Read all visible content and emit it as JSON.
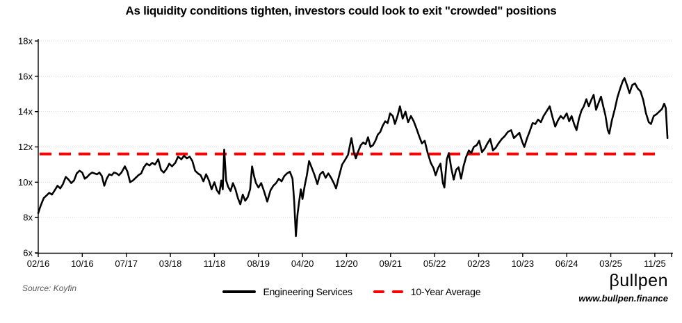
{
  "page": {
    "background": "#ffffff"
  },
  "chart_data": {
    "type": "line",
    "title": "As liquidity conditions tighten, investors could look to exit \"crowded\" positions",
    "xlabel": "",
    "ylabel": "",
    "ylim": [
      6,
      18
    ],
    "grid": "horizontal-dotted",
    "legend_position": "bottom-center",
    "grid_color": "#d9d9d9",
    "axis_color": "#000000",
    "y_ticks": [
      {
        "label": "18x",
        "value": 18
      },
      {
        "label": "16x",
        "value": 16
      },
      {
        "label": "14x",
        "value": 14
      },
      {
        "label": "12x",
        "value": 12
      },
      {
        "label": "10x",
        "value": 10
      },
      {
        "label": "8x",
        "value": 8
      },
      {
        "label": "6x",
        "value": 6
      }
    ],
    "x_ticks": [
      {
        "label": "02/16",
        "month": 0
      },
      {
        "label": "10/16",
        "month": 8
      },
      {
        "label": "07/17",
        "month": 17
      },
      {
        "label": "03/18",
        "month": 25
      },
      {
        "label": "11/18",
        "month": 33
      },
      {
        "label": "08/19",
        "month": 42
      },
      {
        "label": "04/20",
        "month": 50
      },
      {
        "label": "12/20",
        "month": 58
      },
      {
        "label": "09/21",
        "month": 67
      },
      {
        "label": "05/22",
        "month": 75
      },
      {
        "label": "02/23",
        "month": 84
      },
      {
        "label": "10/23",
        "month": 92
      },
      {
        "label": "06/24",
        "month": 100
      },
      {
        "label": "03/25",
        "month": 109
      },
      {
        "label": "11/25",
        "month": 117
      }
    ],
    "series": [
      {
        "name": "Engineering Services",
        "color": "#000000",
        "style": "solid",
        "x_unit": "months_since_2016_02",
        "y_unit": "EV/EBITDA multiple (x)",
        "points": [
          [
            0,
            8.25
          ],
          [
            0.3,
            8.55
          ],
          [
            0.6,
            8.8
          ],
          [
            1,
            9.1
          ],
          [
            1.5,
            9.25
          ],
          [
            2,
            9.4
          ],
          [
            2.5,
            9.3
          ],
          [
            3,
            9.55
          ],
          [
            3.5,
            9.8
          ],
          [
            4,
            9.65
          ],
          [
            4.5,
            9.9
          ],
          [
            5,
            10.3
          ],
          [
            5.5,
            10.15
          ],
          [
            6,
            9.95
          ],
          [
            6.5,
            10.1
          ],
          [
            7,
            10.5
          ],
          [
            7.5,
            10.65
          ],
          [
            8,
            10.55
          ],
          [
            8.5,
            10.2
          ],
          [
            9,
            10.3
          ],
          [
            9.5,
            10.45
          ],
          [
            10,
            10.55
          ],
          [
            10.5,
            10.5
          ],
          [
            11,
            10.45
          ],
          [
            11.5,
            10.55
          ],
          [
            12,
            10.35
          ],
          [
            12.5,
            9.8
          ],
          [
            13,
            10.2
          ],
          [
            13.5,
            10.45
          ],
          [
            14,
            10.4
          ],
          [
            14.5,
            10.55
          ],
          [
            15,
            10.5
          ],
          [
            15.5,
            10.4
          ],
          [
            16,
            10.55
          ],
          [
            16.7,
            10.9
          ],
          [
            17.2,
            10.6
          ],
          [
            17.7,
            10.0
          ],
          [
            18.2,
            10.1
          ],
          [
            18.7,
            10.25
          ],
          [
            19.2,
            10.4
          ],
          [
            19.7,
            10.5
          ],
          [
            20.2,
            10.85
          ],
          [
            20.7,
            11.05
          ],
          [
            21.2,
            10.95
          ],
          [
            21.7,
            11.1
          ],
          [
            22.2,
            11.0
          ],
          [
            22.8,
            11.3
          ],
          [
            23.3,
            10.7
          ],
          [
            23.8,
            10.55
          ],
          [
            24.3,
            10.75
          ],
          [
            24.8,
            11.05
          ],
          [
            25.3,
            10.9
          ],
          [
            25.9,
            11.1
          ],
          [
            26.4,
            11.45
          ],
          [
            27,
            11.3
          ],
          [
            27.5,
            11.5
          ],
          [
            28,
            11.35
          ],
          [
            28.5,
            11.45
          ],
          [
            29,
            11.2
          ],
          [
            29.5,
            10.65
          ],
          [
            30,
            10.5
          ],
          [
            30.5,
            10.4
          ],
          [
            31,
            10.05
          ],
          [
            31.5,
            10.45
          ],
          [
            32,
            10.1
          ],
          [
            32.5,
            9.6
          ],
          [
            33,
            10.0
          ],
          [
            33.5,
            9.55
          ],
          [
            34,
            9.35
          ],
          [
            34.4,
            10.1
          ],
          [
            34.7,
            9.6
          ],
          [
            35,
            11.85
          ],
          [
            35.4,
            10.1
          ],
          [
            35.8,
            9.75
          ],
          [
            36.3,
            9.5
          ],
          [
            36.8,
            9.95
          ],
          [
            37.3,
            9.6
          ],
          [
            37.8,
            9.1
          ],
          [
            38.3,
            8.75
          ],
          [
            38.8,
            9.3
          ],
          [
            39.3,
            8.95
          ],
          [
            39.8,
            9.15
          ],
          [
            40.3,
            9.6
          ],
          [
            40.7,
            10.9
          ],
          [
            41.1,
            10.35
          ],
          [
            41.5,
            9.95
          ],
          [
            42,
            9.7
          ],
          [
            42.5,
            9.95
          ],
          [
            43,
            9.5
          ],
          [
            43.6,
            8.9
          ],
          [
            44.2,
            9.55
          ],
          [
            44.7,
            9.8
          ],
          [
            45.2,
            9.95
          ],
          [
            45.7,
            10.2
          ],
          [
            46.2,
            10.05
          ],
          [
            46.7,
            10.35
          ],
          [
            47.2,
            10.5
          ],
          [
            47.7,
            10.6
          ],
          [
            48.2,
            10.2
          ],
          [
            48.5,
            8.9
          ],
          [
            48.8,
            6.95
          ],
          [
            49.1,
            8.2
          ],
          [
            49.4,
            8.9
          ],
          [
            49.7,
            9.6
          ],
          [
            50,
            9.05
          ],
          [
            50.4,
            9.8
          ],
          [
            50.8,
            10.4
          ],
          [
            51.2,
            11.2
          ],
          [
            51.7,
            10.8
          ],
          [
            52.2,
            10.4
          ],
          [
            52.7,
            9.9
          ],
          [
            53.2,
            10.45
          ],
          [
            53.7,
            10.6
          ],
          [
            54.2,
            10.25
          ],
          [
            54.7,
            10.5
          ],
          [
            55.2,
            10.25
          ],
          [
            55.7,
            9.95
          ],
          [
            56.1,
            9.65
          ],
          [
            56.6,
            10.3
          ],
          [
            57.2,
            11.0
          ],
          [
            57.8,
            11.3
          ],
          [
            58.3,
            11.55
          ],
          [
            59,
            12.5
          ],
          [
            59.5,
            11.7
          ],
          [
            59.9,
            11.35
          ],
          [
            60.4,
            11.75
          ],
          [
            60.9,
            12.1
          ],
          [
            61.4,
            12.25
          ],
          [
            61.9,
            12.15
          ],
          [
            62.4,
            12.55
          ],
          [
            62.9,
            12.0
          ],
          [
            63.4,
            12.1
          ],
          [
            63.9,
            12.35
          ],
          [
            64.4,
            12.7
          ],
          [
            64.9,
            12.85
          ],
          [
            65.4,
            13.2
          ],
          [
            65.9,
            13.45
          ],
          [
            66.4,
            13.35
          ],
          [
            66.9,
            13.9
          ],
          [
            67.4,
            13.75
          ],
          [
            67.8,
            13.3
          ],
          [
            68.3,
            13.8
          ],
          [
            68.7,
            14.3
          ],
          [
            69.2,
            13.6
          ],
          [
            69.7,
            14.0
          ],
          [
            70.2,
            13.4
          ],
          [
            70.7,
            13.75
          ],
          [
            71.2,
            13.45
          ],
          [
            71.7,
            13.05
          ],
          [
            72.2,
            12.6
          ],
          [
            72.7,
            12.2
          ],
          [
            73.2,
            12.35
          ],
          [
            73.7,
            11.7
          ],
          [
            74.3,
            11.1
          ],
          [
            74.8,
            10.8
          ],
          [
            75.2,
            10.4
          ],
          [
            75.7,
            10.8
          ],
          [
            76.2,
            11.05
          ],
          [
            76.7,
            9.95
          ],
          [
            77,
            9.7
          ],
          [
            77.5,
            11.3
          ],
          [
            77.9,
            11.65
          ],
          [
            78.4,
            10.8
          ],
          [
            78.9,
            10.15
          ],
          [
            79.4,
            10.7
          ],
          [
            79.9,
            10.85
          ],
          [
            80.4,
            10.2
          ],
          [
            80.9,
            10.9
          ],
          [
            81.4,
            11.4
          ],
          [
            82,
            11.8
          ],
          [
            82.5,
            11.65
          ],
          [
            83,
            12.0
          ],
          [
            83.6,
            12.1
          ],
          [
            84.1,
            12.35
          ],
          [
            84.6,
            11.7
          ],
          [
            85.1,
            11.9
          ],
          [
            85.6,
            12.2
          ],
          [
            86.1,
            12.45
          ],
          [
            86.6,
            11.8
          ],
          [
            87.1,
            11.95
          ],
          [
            87.6,
            12.2
          ],
          [
            88.2,
            12.45
          ],
          [
            88.7,
            12.6
          ],
          [
            89.3,
            12.85
          ],
          [
            89.9,
            12.95
          ],
          [
            90.4,
            12.5
          ],
          [
            90.9,
            12.65
          ],
          [
            91.4,
            12.8
          ],
          [
            91.9,
            12.3
          ],
          [
            92.3,
            12.0
          ],
          [
            92.8,
            12.5
          ],
          [
            93.3,
            12.9
          ],
          [
            93.8,
            13.35
          ],
          [
            94.3,
            13.3
          ],
          [
            94.8,
            13.55
          ],
          [
            95.3,
            13.4
          ],
          [
            95.8,
            13.75
          ],
          [
            96.3,
            14.0
          ],
          [
            96.9,
            14.3
          ],
          [
            97.4,
            13.7
          ],
          [
            97.9,
            13.15
          ],
          [
            98.4,
            13.5
          ],
          [
            98.9,
            13.75
          ],
          [
            99.4,
            13.6
          ],
          [
            100,
            13.9
          ],
          [
            100.5,
            13.45
          ],
          [
            101,
            13.75
          ],
          [
            101.5,
            13.3
          ],
          [
            102,
            12.95
          ],
          [
            102.5,
            13.6
          ],
          [
            103,
            14.05
          ],
          [
            103.5,
            14.3
          ],
          [
            104,
            14.7
          ],
          [
            104.5,
            14.3
          ],
          [
            105,
            14.65
          ],
          [
            105.5,
            14.95
          ],
          [
            106,
            14.1
          ],
          [
            106.5,
            14.5
          ],
          [
            107,
            14.85
          ],
          [
            107.5,
            14.25
          ],
          [
            107.9,
            13.8
          ],
          [
            108.4,
            12.95
          ],
          [
            108.7,
            12.75
          ],
          [
            109.2,
            13.5
          ],
          [
            109.7,
            14.1
          ],
          [
            110.2,
            14.8
          ],
          [
            110.7,
            15.3
          ],
          [
            111.2,
            15.75
          ],
          [
            111.5,
            15.9
          ],
          [
            112,
            15.45
          ],
          [
            112.4,
            15.05
          ],
          [
            112.9,
            15.5
          ],
          [
            113.4,
            15.6
          ],
          [
            113.9,
            15.3
          ],
          [
            114.4,
            15.15
          ],
          [
            114.9,
            14.65
          ],
          [
            115.4,
            13.9
          ],
          [
            115.9,
            13.4
          ],
          [
            116.3,
            13.3
          ],
          [
            116.8,
            13.75
          ],
          [
            117.3,
            13.85
          ],
          [
            117.8,
            14.0
          ],
          [
            118.3,
            14.15
          ],
          [
            118.7,
            14.45
          ],
          [
            119,
            14.2
          ],
          [
            119.3,
            12.5
          ]
        ]
      },
      {
        "name": "10-Year Average",
        "color": "#ff0000",
        "style": "dashed",
        "value": 11.6
      }
    ]
  },
  "footer": {
    "source": "Source: Koyfin",
    "logo_text": "βullpen",
    "logo_url": "www.bullpen.finance"
  }
}
